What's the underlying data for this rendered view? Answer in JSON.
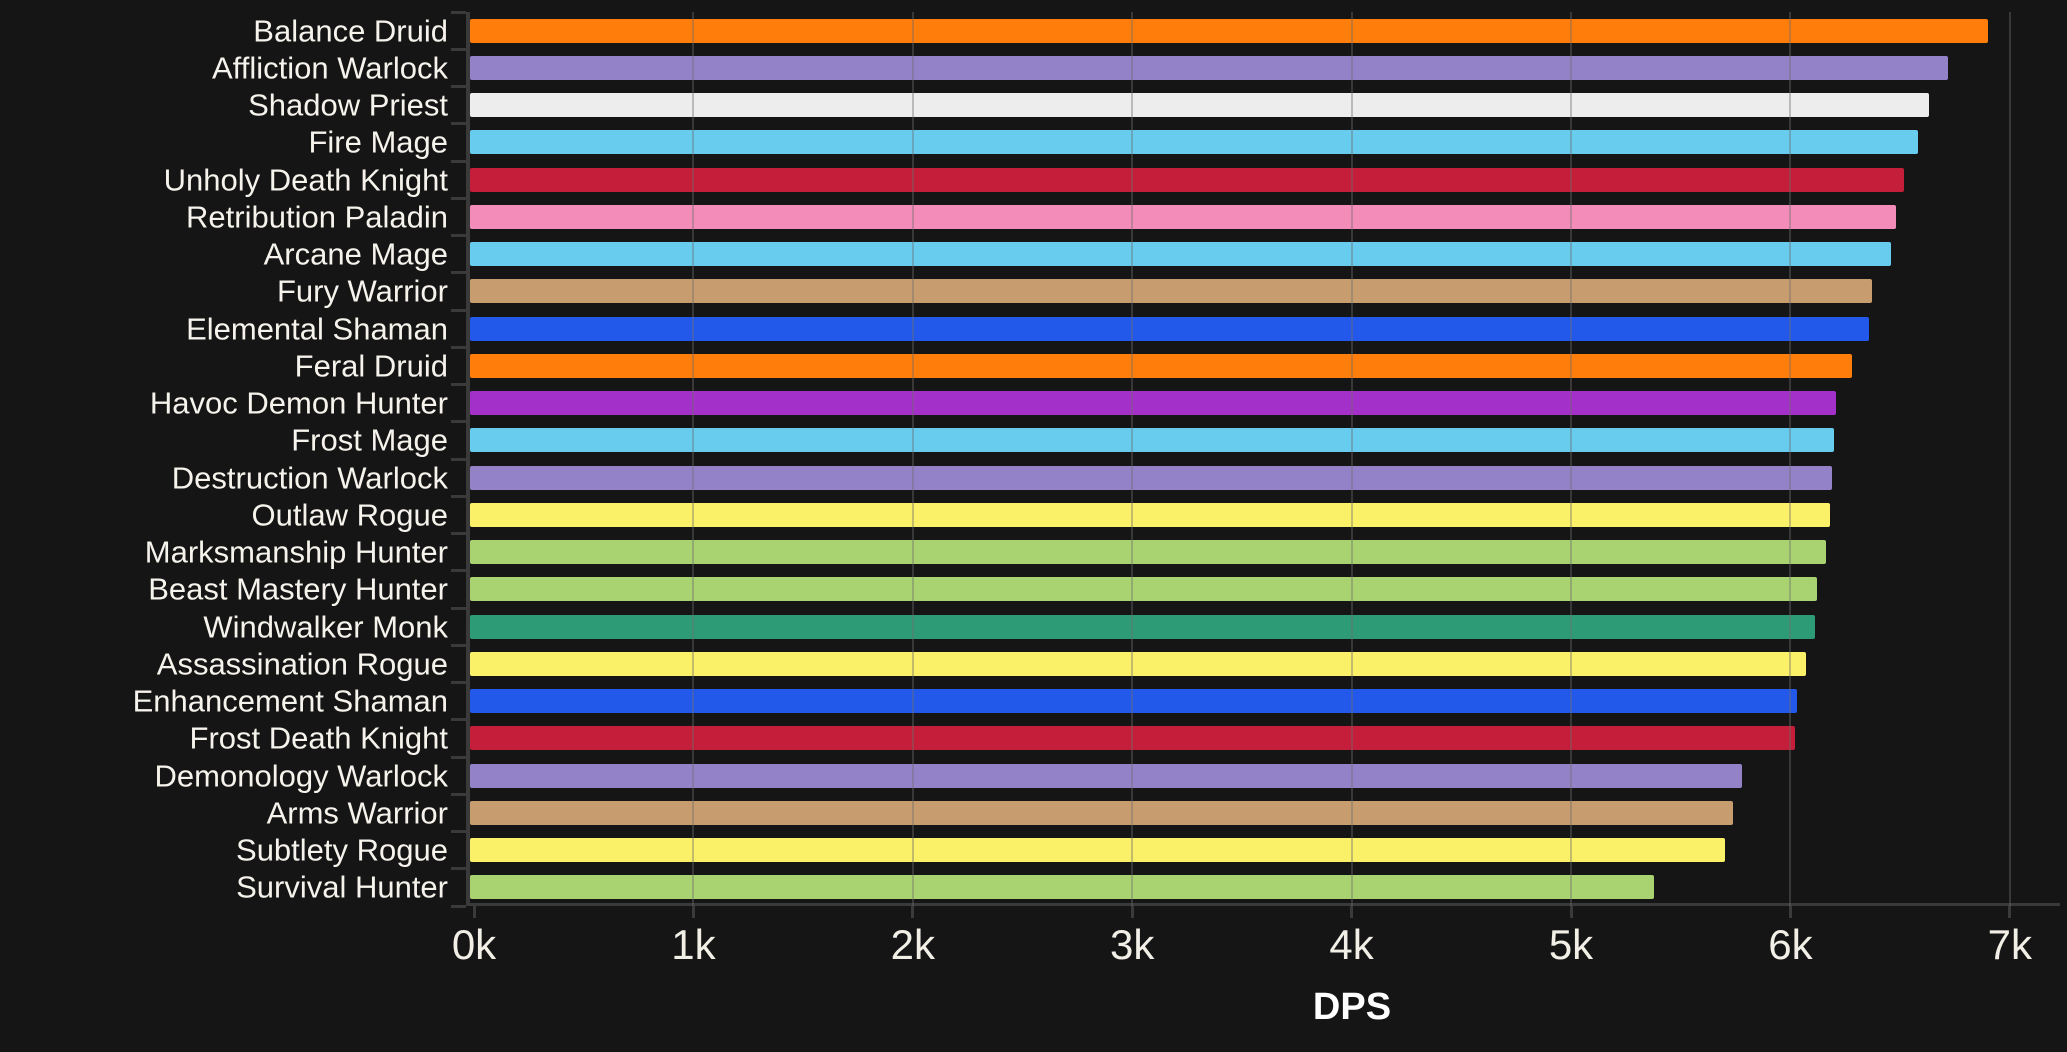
{
  "page": {
    "background_color": "#151515",
    "axis_color": "#3a3a3a",
    "label_text_color": "#f6f3ec",
    "tick_text_color": "#f2efe7"
  },
  "chart_data": {
    "type": "bar",
    "orientation": "horizontal",
    "title": "",
    "xlabel": "DPS",
    "ylabel": "",
    "xlim": [
      0,
      7000
    ],
    "x_tick_labels": [
      "0k",
      "1k",
      "2k",
      "3k",
      "4k",
      "5k",
      "6k",
      "7k"
    ],
    "x_tick_values": [
      0,
      1000,
      2000,
      3000,
      4000,
      5000,
      6000,
      7000
    ],
    "grid": "vertical-overlay",
    "legend": "none",
    "categories": [
      "Balance Druid",
      "Affliction Warlock",
      "Shadow Priest",
      "Fire Mage",
      "Unholy Death Knight",
      "Retribution Paladin",
      "Arcane Mage",
      "Fury Warrior",
      "Elemental Shaman",
      "Feral Druid",
      "Havoc Demon Hunter",
      "Frost Mage",
      "Destruction Warlock",
      "Outlaw Rogue",
      "Marksmanship Hunter",
      "Beast Mastery Hunter",
      "Windwalker Monk",
      "Assassination Rogue",
      "Enhancement Shaman",
      "Frost Death Knight",
      "Demonology Warlock",
      "Arms Warrior",
      "Subtlety Rogue",
      "Survival Hunter"
    ],
    "values": [
      6900,
      6720,
      6630,
      6580,
      6520,
      6480,
      6460,
      6370,
      6360,
      6280,
      6210,
      6200,
      6190,
      6180,
      6160,
      6120,
      6110,
      6070,
      6030,
      6020,
      5780,
      5740,
      5700,
      5380
    ],
    "bar_colors": [
      "#FF7D0A",
      "#9482C9",
      "#EDEDED",
      "#68CCEF",
      "#C41E3A",
      "#F48CBA",
      "#68CCEF",
      "#C79C6E",
      "#2359EA",
      "#FF7D0A",
      "#A330C9",
      "#68CCEF",
      "#9482C9",
      "#FBF168",
      "#A9D271",
      "#A9D271",
      "#2E9B77",
      "#FBF168",
      "#2359EA",
      "#C41E3A",
      "#9482C9",
      "#C79C6E",
      "#FBF168",
      "#A9D271"
    ]
  }
}
